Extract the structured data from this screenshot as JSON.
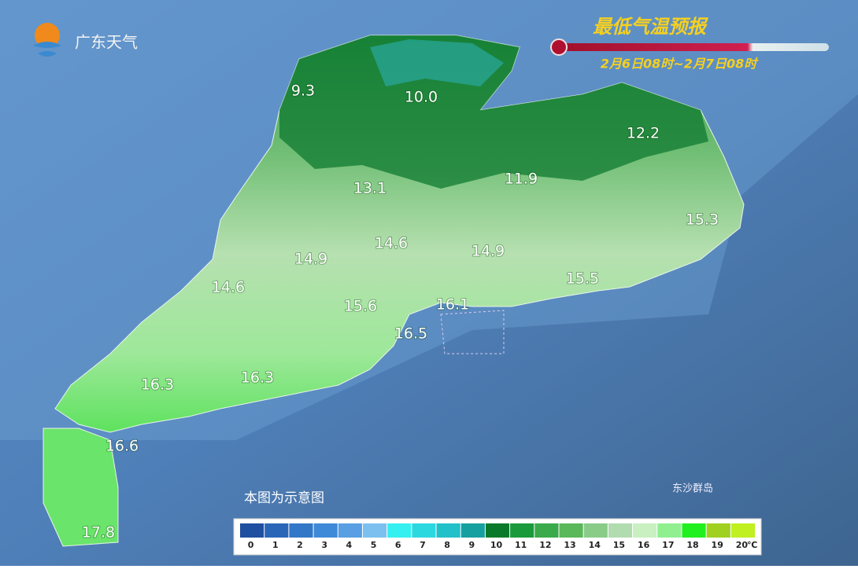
{
  "header": {
    "logo": "广东天气",
    "title": "最低气温预报",
    "subtitle": "2月6日08时~2月7日08时"
  },
  "labels": [
    {
      "place": "9.3"
    },
    {
      "place": "10.0"
    },
    {
      "place": "12.2"
    },
    {
      "place": "13.1"
    },
    {
      "place": "11.9"
    },
    {
      "place": "15.3"
    },
    {
      "place": "14.6"
    },
    {
      "place": "14.9"
    },
    {
      "place": "14.9"
    },
    {
      "place": "14.6"
    },
    {
      "place": "15.5"
    },
    {
      "place": "15.6"
    },
    {
      "place": "16.1"
    },
    {
      "place": "16.5"
    },
    {
      "place": "16.3"
    },
    {
      "place": "16.3"
    },
    {
      "place": "16.6"
    },
    {
      "place": "17.8"
    }
  ],
  "note": "本图为示意图",
  "island": "东沙群岛",
  "legend": {
    "unit": "℃",
    "items": [
      {
        "value": 0,
        "color": "#1f4fa0"
      },
      {
        "value": 1,
        "color": "#2a66b8"
      },
      {
        "value": 2,
        "color": "#3378c8"
      },
      {
        "value": 3,
        "color": "#3f8ad8"
      },
      {
        "value": 4,
        "color": "#58a0e3"
      },
      {
        "value": 5,
        "color": "#7cc0f0"
      },
      {
        "value": 6,
        "color": "#34f0f0"
      },
      {
        "value": 7,
        "color": "#2cd8e0"
      },
      {
        "value": 8,
        "color": "#22c0c8"
      },
      {
        "value": 9,
        "color": "#17a0a0"
      },
      {
        "value": 10,
        "color": "#0a7a2a"
      },
      {
        "value": 11,
        "color": "#1a9a3a"
      },
      {
        "value": 12,
        "color": "#3aaa4a"
      },
      {
        "value": 13,
        "color": "#5ab85a"
      },
      {
        "value": 14,
        "color": "#88cc88"
      },
      {
        "value": 15,
        "color": "#b0dcb0"
      },
      {
        "value": 16,
        "color": "#c8f0c0"
      },
      {
        "value": 17,
        "color": "#90f090"
      },
      {
        "value": 18,
        "color": "#20f020"
      },
      {
        "value": 19,
        "color": "#a0d020"
      },
      {
        "value": 20,
        "color": "#c0f020"
      }
    ]
  }
}
